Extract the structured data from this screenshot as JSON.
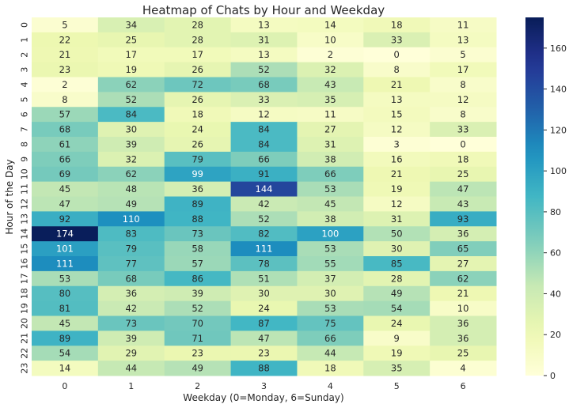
{
  "chart_data": {
    "type": "heatmap",
    "title": "Heatmap of Chats by Hour and Weekday",
    "xlabel": "Weekday (0=Monday, 6=Sunday)",
    "ylabel": "Hour of the Day",
    "x_categories": [
      "0",
      "1",
      "2",
      "3",
      "4",
      "5",
      "6"
    ],
    "y_categories": [
      "0",
      "1",
      "2",
      "3",
      "4",
      "5",
      "6",
      "7",
      "8",
      "9",
      "10",
      "11",
      "12",
      "13",
      "14",
      "15",
      "16",
      "17",
      "18",
      "19",
      "20",
      "21",
      "22",
      "23"
    ],
    "values": [
      [
        5,
        34,
        28,
        13,
        14,
        18,
        11
      ],
      [
        22,
        25,
        28,
        31,
        10,
        33,
        13
      ],
      [
        21,
        17,
        17,
        13,
        2,
        0,
        5
      ],
      [
        23,
        19,
        26,
        52,
        32,
        8,
        17
      ],
      [
        2,
        62,
        72,
        68,
        43,
        21,
        8
      ],
      [
        8,
        52,
        26,
        33,
        35,
        13,
        12
      ],
      [
        57,
        84,
        18,
        12,
        11,
        15,
        8
      ],
      [
        68,
        30,
        24,
        84,
        27,
        12,
        33
      ],
      [
        61,
        39,
        26,
        84,
        31,
        3,
        0
      ],
      [
        66,
        32,
        79,
        66,
        38,
        16,
        18
      ],
      [
        69,
        62,
        99,
        91,
        66,
        21,
        25
      ],
      [
        45,
        48,
        36,
        144,
        53,
        19,
        47
      ],
      [
        47,
        49,
        89,
        42,
        45,
        12,
        43
      ],
      [
        92,
        110,
        88,
        52,
        38,
        31,
        93
      ],
      [
        174,
        83,
        73,
        82,
        100,
        50,
        36
      ],
      [
        101,
        79,
        58,
        111,
        53,
        30,
        65
      ],
      [
        111,
        77,
        57,
        78,
        55,
        85,
        27
      ],
      [
        53,
        68,
        86,
        51,
        37,
        28,
        62
      ],
      [
        80,
        36,
        39,
        30,
        30,
        49,
        21
      ],
      [
        81,
        42,
        52,
        24,
        53,
        54,
        10
      ],
      [
        45,
        73,
        70,
        87,
        75,
        24,
        36
      ],
      [
        89,
        39,
        71,
        47,
        66,
        9,
        36
      ],
      [
        54,
        29,
        23,
        23,
        44,
        19,
        25
      ],
      [
        14,
        44,
        49,
        88,
        18,
        35,
        4
      ]
    ],
    "colormap": "YlGnBu",
    "color_range": [
      0,
      175
    ],
    "colorbar_ticks": [
      "0",
      "20",
      "40",
      "60",
      "80",
      "100",
      "120",
      "140",
      "160"
    ]
  }
}
